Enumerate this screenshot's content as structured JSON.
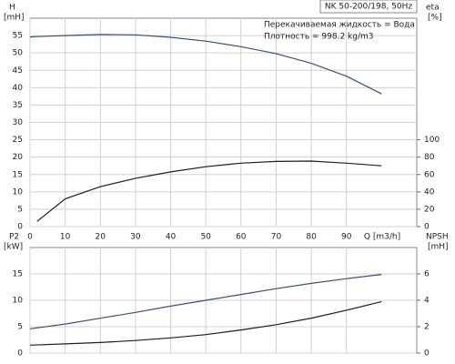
{
  "chart_data": [
    {
      "type": "line",
      "title": "NK 50-200/198, 50Hz",
      "annotations": [
        "Перекачиваемая жидкость = Вода",
        "Плотность = 998.2 kg/m3"
      ],
      "ylabel": "H",
      "ylabel_unit": "[mH]",
      "y2label": "eta",
      "y2label_unit": "[%]",
      "xlabel": "Q [m3/h]",
      "x": [
        0,
        2,
        10,
        20,
        30,
        40,
        50,
        60,
        70,
        80,
        90,
        100
      ],
      "series": [
        {
          "name": "H",
          "color": "#3b5078",
          "values": [
            54.6,
            54.7,
            55.0,
            55.3,
            55.2,
            54.5,
            53.4,
            51.8,
            49.8,
            47.0,
            43.3,
            38.2
          ]
        },
        {
          "name": "eta",
          "color": "#1e1e1e",
          "axis": "y2",
          "values": [
            null,
            6,
            32,
            46,
            55.6,
            63,
            69,
            73,
            75,
            75.5,
            73,
            70
          ]
        }
      ],
      "xlim": [
        0,
        110
      ],
      "xticks": [
        0,
        10,
        20,
        30,
        40,
        50,
        60,
        70,
        80,
        90
      ],
      "ylim": [
        0,
        60
      ],
      "yticks": [
        0,
        5,
        10,
        15,
        20,
        25,
        30,
        35,
        40,
        45,
        50,
        55
      ],
      "y2lim": [
        0,
        240
      ],
      "y2ticks": [
        0,
        20,
        40,
        60,
        80,
        100
      ],
      "grid": true,
      "xtick_labels": true
    },
    {
      "type": "line",
      "ylabel": "P2",
      "ylabel_unit": "[kW]",
      "y2label": "NPSH",
      "y2label_unit": "[mH]",
      "x": [
        0,
        10,
        20,
        30,
        40,
        50,
        60,
        70,
        80,
        90,
        100
      ],
      "series": [
        {
          "name": "P2",
          "color": "#3b5078",
          "values": [
            4.6,
            5.5,
            6.6,
            7.7,
            8.9,
            10.0,
            11.1,
            12.2,
            13.2,
            14.1,
            14.9
          ]
        },
        {
          "name": "NPSH",
          "color": "#1e1e1e",
          "axis": "y2",
          "values": [
            0.6,
            0.7,
            0.8,
            0.95,
            1.15,
            1.4,
            1.75,
            2.15,
            2.65,
            3.25,
            3.9
          ]
        }
      ],
      "xlim": [
        0,
        110
      ],
      "xticks": [
        0,
        10,
        20,
        30,
        40,
        50,
        60,
        70,
        80,
        90
      ],
      "ylim": [
        0,
        20
      ],
      "yticks": [
        0,
        5,
        10,
        15
      ],
      "y2lim": [
        0,
        8
      ],
      "y2ticks": [
        0,
        2,
        4,
        6
      ],
      "grid": true,
      "xtick_labels": false
    }
  ]
}
